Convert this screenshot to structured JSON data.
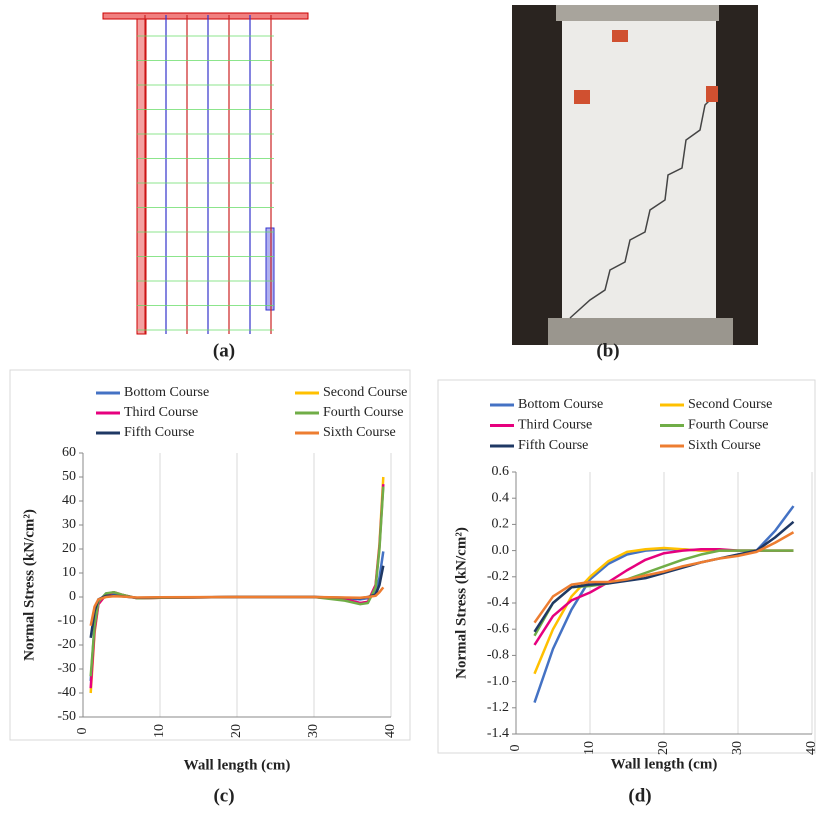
{
  "figure_labels": [
    "(a)",
    "(b)",
    "(c)",
    "(d)"
  ],
  "chart_data": [
    {
      "type": "line",
      "x_label": "Wall length (cm)",
      "y_label": "Normal Stress  (kN/cm²)",
      "x": [
        1,
        1.5,
        2,
        3,
        4,
        5,
        7,
        10,
        20,
        30,
        34,
        36,
        37,
        38,
        38.5,
        39
      ],
      "series": [
        {
          "name": "Bottom Course",
          "color": "#4472c4",
          "values": [
            -35,
            -12,
            -2,
            1.5,
            1.5,
            0.5,
            -0.5,
            -0.3,
            0,
            0,
            -0.5,
            -1,
            -0.5,
            2,
            8,
            19
          ]
        },
        {
          "name": "Second Course",
          "color": "#ffc000",
          "values": [
            -40,
            -15,
            -3,
            1,
            2,
            1,
            -0.5,
            -0.3,
            0,
            0,
            -1,
            -2.5,
            -2,
            5,
            22,
            50
          ]
        },
        {
          "name": "Third Course",
          "color": "#e6007e",
          "values": [
            -38,
            -14,
            -3,
            1,
            2,
            1,
            -0.5,
            -0.3,
            0,
            0,
            -1,
            -2.5,
            -2,
            5,
            21,
            47
          ]
        },
        {
          "name": "Fourth Course",
          "color": "#70ad47",
          "values": [
            -33,
            -12,
            -2,
            1.5,
            2,
            1,
            -0.5,
            -0.3,
            0,
            0,
            -1.5,
            -3,
            -2.5,
            4,
            20,
            46
          ]
        },
        {
          "name": "Fifth Course",
          "color": "#1f3864",
          "values": [
            -17,
            -6,
            -1,
            0.5,
            0.5,
            0.3,
            -0.3,
            -0.2,
            0,
            0,
            -0.3,
            -0.5,
            0,
            1,
            5,
            13
          ]
        },
        {
          "name": "Sixth Course",
          "color": "#ed7d31",
          "values": [
            -12,
            -4,
            -1,
            0,
            0.3,
            0.2,
            -0.2,
            -0.1,
            0,
            0,
            -0.2,
            -0.3,
            0,
            0.5,
            2,
            4
          ]
        }
      ],
      "xlim": [
        0,
        40
      ],
      "xticks": [
        0,
        10,
        20,
        30,
        40
      ],
      "ylim": [
        -50,
        60
      ],
      "yticks": [
        -50,
        -40,
        -30,
        -20,
        -10,
        0,
        10,
        20,
        30,
        40,
        50,
        60
      ],
      "grid": "x"
    },
    {
      "type": "line",
      "x_label": "Wall length  (cm)",
      "y_label": "Normal Stress  (kN/cm²)",
      "x": [
        2.5,
        5,
        7.5,
        10,
        12.5,
        15,
        17.5,
        20,
        22.5,
        25,
        27.5,
        30,
        32.5,
        35,
        37.5
      ],
      "series": [
        {
          "name": "Bottom Course",
          "color": "#4472c4",
          "values": [
            -1.16,
            -0.75,
            -0.45,
            -0.22,
            -0.1,
            -0.03,
            0,
            0.01,
            0.01,
            0,
            0,
            0,
            0,
            0.15,
            0.34
          ]
        },
        {
          "name": "Second Course",
          "color": "#ffc000",
          "values": [
            -0.94,
            -0.6,
            -0.35,
            -0.2,
            -0.08,
            -0.01,
            0.01,
            0.02,
            0.01,
            0,
            0,
            0,
            0,
            0,
            0
          ]
        },
        {
          "name": "Third Course",
          "color": "#e6007e",
          "values": [
            -0.72,
            -0.5,
            -0.38,
            -0.32,
            -0.24,
            -0.15,
            -0.07,
            -0.02,
            0,
            0.01,
            0.01,
            0,
            0,
            0,
            0
          ]
        },
        {
          "name": "Fourth Course",
          "color": "#70ad47",
          "values": [
            -0.65,
            -0.4,
            -0.28,
            -0.27,
            -0.25,
            -0.22,
            -0.17,
            -0.12,
            -0.07,
            -0.03,
            0,
            0,
            0,
            0,
            0
          ]
        },
        {
          "name": "Fifth Course",
          "color": "#1f3864",
          "values": [
            -0.62,
            -0.4,
            -0.28,
            -0.26,
            -0.25,
            -0.23,
            -0.21,
            -0.17,
            -0.13,
            -0.09,
            -0.06,
            -0.03,
            0,
            0.1,
            0.22
          ]
        },
        {
          "name": "Sixth Course",
          "color": "#ed7d31",
          "values": [
            -0.55,
            -0.35,
            -0.26,
            -0.24,
            -0.24,
            -0.22,
            -0.19,
            -0.16,
            -0.12,
            -0.09,
            -0.06,
            -0.04,
            -0.01,
            0.06,
            0.14
          ]
        }
      ],
      "xlim": [
        0,
        40
      ],
      "xticks": [
        0,
        10,
        20,
        30,
        40
      ],
      "ylim": [
        -1.4,
        0.6
      ],
      "yticks": [
        -1.4,
        -1.2,
        {
          "value": -1,
          "label": "-1.0"
        },
        -0.8,
        -0.6,
        -0.4,
        -0.2,
        {
          "value": 0,
          "label": "0.0"
        },
        0.2,
        0.4,
        0.6
      ],
      "grid": "x"
    }
  ]
}
